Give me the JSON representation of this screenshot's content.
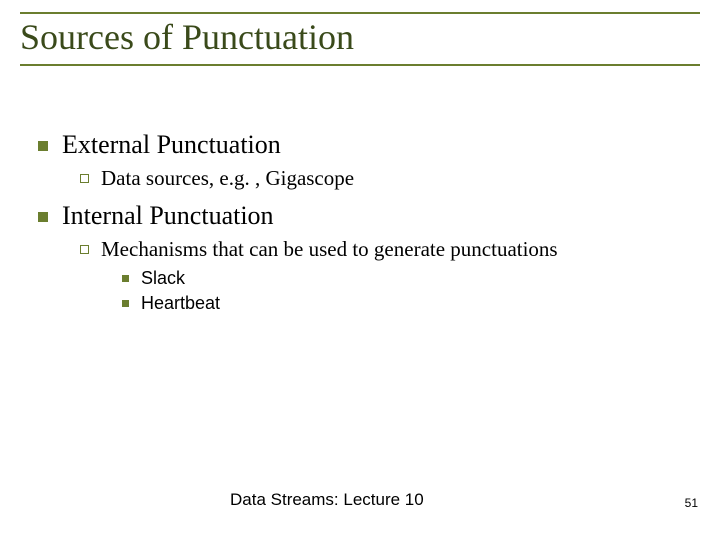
{
  "title": "Sources of Punctuation",
  "points": {
    "p1": {
      "label": "External Punctuation",
      "sub": {
        "s1": "Data sources, e.g. , Gigascope"
      }
    },
    "p2": {
      "label": "Internal Punctuation",
      "sub": {
        "s1": "Mechanisms that can be used to generate punctuations",
        "items": {
          "i1": "Slack",
          "i2": "Heartbeat"
        }
      }
    }
  },
  "footer": {
    "center": "Data Streams: Lecture 10",
    "page": "51"
  },
  "colors": {
    "accent": "#6b7e2f",
    "title": "#3a4a1a",
    "text": "#000000",
    "background": "#ffffff"
  }
}
